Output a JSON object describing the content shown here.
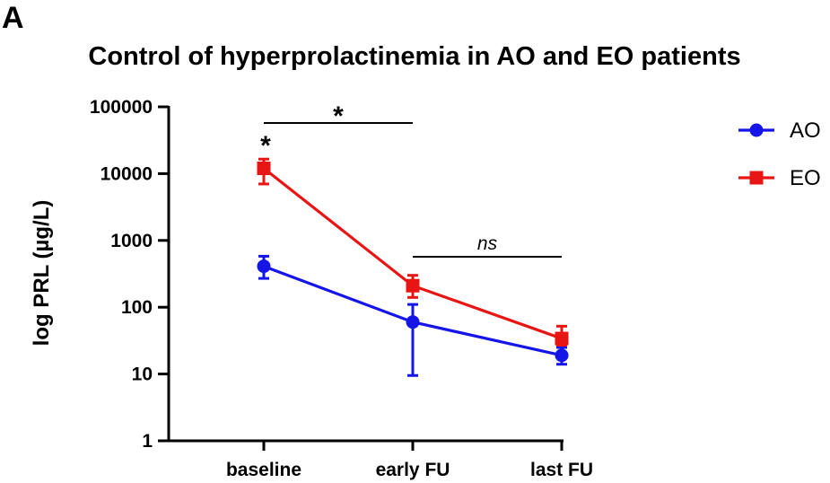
{
  "panel_label": "A",
  "chart_data": {
    "type": "line",
    "title": "Control of hyperprolactinemia in AO and EO patients",
    "xlabel": "",
    "ylabel": "log PRL (µg/L)",
    "yscale": "log",
    "ylim": [
      1,
      100000
    ],
    "y_ticks": [
      1,
      10,
      100,
      1000,
      10000,
      100000
    ],
    "y_tick_labels": [
      "1",
      "10",
      "100",
      "1000",
      "10000",
      "100000"
    ],
    "categories": [
      "baseline",
      "early FU",
      "last FU"
    ],
    "legend_position": "top-right",
    "series": [
      {
        "name": "AO",
        "color": "#1515e8",
        "marker": "circle",
        "values": [
          410,
          60,
          19
        ],
        "err_low": [
          270,
          9.5,
          14
        ],
        "err_high": [
          580,
          110,
          25
        ]
      },
      {
        "name": "EO",
        "color": "#e81515",
        "marker": "square",
        "values": [
          12000,
          210,
          34
        ],
        "err_low": [
          7000,
          140,
          27
        ],
        "err_high": [
          16500,
          300,
          52
        ]
      }
    ],
    "annotations": [
      {
        "text": "*",
        "type": "point-star",
        "category": "baseline"
      },
      {
        "text": "*",
        "type": "bracket",
        "from": "baseline",
        "to": "early FU"
      },
      {
        "text": "ns",
        "type": "bracket",
        "from": "early FU",
        "to": "last FU"
      }
    ]
  }
}
